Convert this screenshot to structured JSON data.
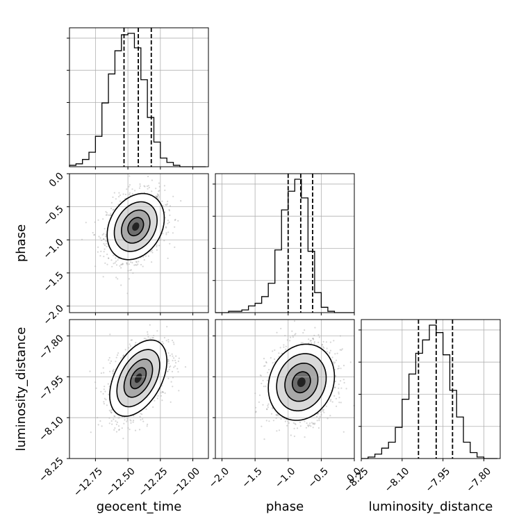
{
  "chart_data": {
    "type": "corner",
    "parameters": [
      {
        "name": "geocent_time",
        "range": [
          -12.95,
          -11.88
        ],
        "ticks": [
          -12.75,
          -12.5,
          -12.25,
          -12.0
        ],
        "tick_labels": [
          "−12.75",
          "−12.50",
          "−12.25",
          "−12.00"
        ],
        "quantiles": [
          -12.53,
          -12.42,
          -12.32
        ]
      },
      {
        "name": "phase",
        "range": [
          -2.1,
          0.0
        ],
        "ticks": [
          -2.0,
          -1.5,
          -1.0,
          -0.5,
          0.0
        ],
        "tick_labels": [
          "−2.0",
          "−1.5",
          "−1.0",
          "−0.5",
          "0.0"
        ],
        "quantiles": [
          -1.0,
          -0.81,
          -0.63
        ]
      },
      {
        "name": "luminosity_distance",
        "range": [
          -8.25,
          -7.74
        ],
        "ticks": [
          -8.25,
          -8.1,
          -7.95,
          -7.8
        ],
        "tick_labels": [
          "−8.25",
          "−8.10",
          "−7.95",
          "−7.80"
        ],
        "quantiles": [
          -8.04,
          -7.975,
          -7.915
        ]
      }
    ],
    "histograms": [
      {
        "param": "geocent_time",
        "bin_edges": [
          -12.95,
          -12.9,
          -12.85,
          -12.8,
          -12.75,
          -12.7,
          -12.65,
          -12.6,
          -12.55,
          -12.5,
          -12.45,
          -12.4,
          -12.35,
          -12.3,
          -12.25,
          -12.2,
          -12.15,
          -12.1,
          -12.05,
          -12.0,
          -11.95,
          -11.9
        ],
        "counts": [
          1,
          2,
          5,
          10,
          21,
          44,
          64,
          80,
          91,
          92,
          82,
          60,
          34,
          17,
          6,
          3,
          1,
          0,
          0,
          0,
          0
        ]
      },
      {
        "param": "phase",
        "bin_edges": [
          -2.1,
          -2.0,
          -1.9,
          -1.8,
          -1.7,
          -1.6,
          -1.5,
          -1.4,
          -1.3,
          -1.2,
          -1.1,
          -1.0,
          -0.9,
          -0.8,
          -0.7,
          -0.6,
          -0.5,
          -0.4,
          -0.3,
          -0.2,
          -0.1,
          0.0
        ],
        "counts": [
          0,
          0,
          1,
          1,
          2,
          5,
          7,
          12,
          22,
          47,
          77,
          91,
          100,
          86,
          46,
          15,
          4,
          1,
          0,
          0,
          0
        ]
      },
      {
        "param": "luminosity_distance",
        "bin_edges": [
          -8.25,
          -8.225,
          -8.2,
          -8.175,
          -8.15,
          -8.125,
          -8.1,
          -8.075,
          -8.05,
          -8.025,
          -8.0,
          -7.975,
          -7.95,
          -7.925,
          -7.9,
          -7.875,
          -7.85,
          -7.825,
          -7.8,
          -7.775,
          -7.75
        ],
        "counts": [
          0,
          1,
          3,
          7,
          11,
          21,
          40,
          57,
          71,
          80,
          90,
          85,
          70,
          46,
          28,
          11,
          4,
          1,
          0,
          0
        ]
      }
    ],
    "scatter_panels": [
      {
        "x": "geocent_time",
        "y": "phase",
        "mean": [
          -12.44,
          -0.8
        ],
        "sigma": [
          0.11,
          0.25
        ],
        "rho": 0.25
      },
      {
        "x": "geocent_time",
        "y": "luminosity_distance",
        "mean": [
          -12.42,
          -7.955
        ],
        "sigma": [
          0.11,
          0.07
        ],
        "rho": 0.45
      },
      {
        "x": "phase",
        "y": "luminosity_distance",
        "mean": [
          -0.8,
          -7.97
        ],
        "sigma": [
          0.25,
          0.07
        ],
        "rho": 0.15
      }
    ],
    "grid": true
  }
}
